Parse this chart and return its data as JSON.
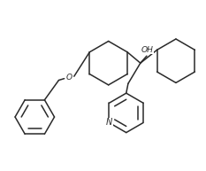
{
  "background_color": "#ffffff",
  "line_color": "#2a2a2a",
  "line_width": 1.1,
  "figsize": [
    2.33,
    1.93
  ],
  "dpi": 100,
  "oh_label": "OH",
  "o_label": "O",
  "n_label": "N"
}
